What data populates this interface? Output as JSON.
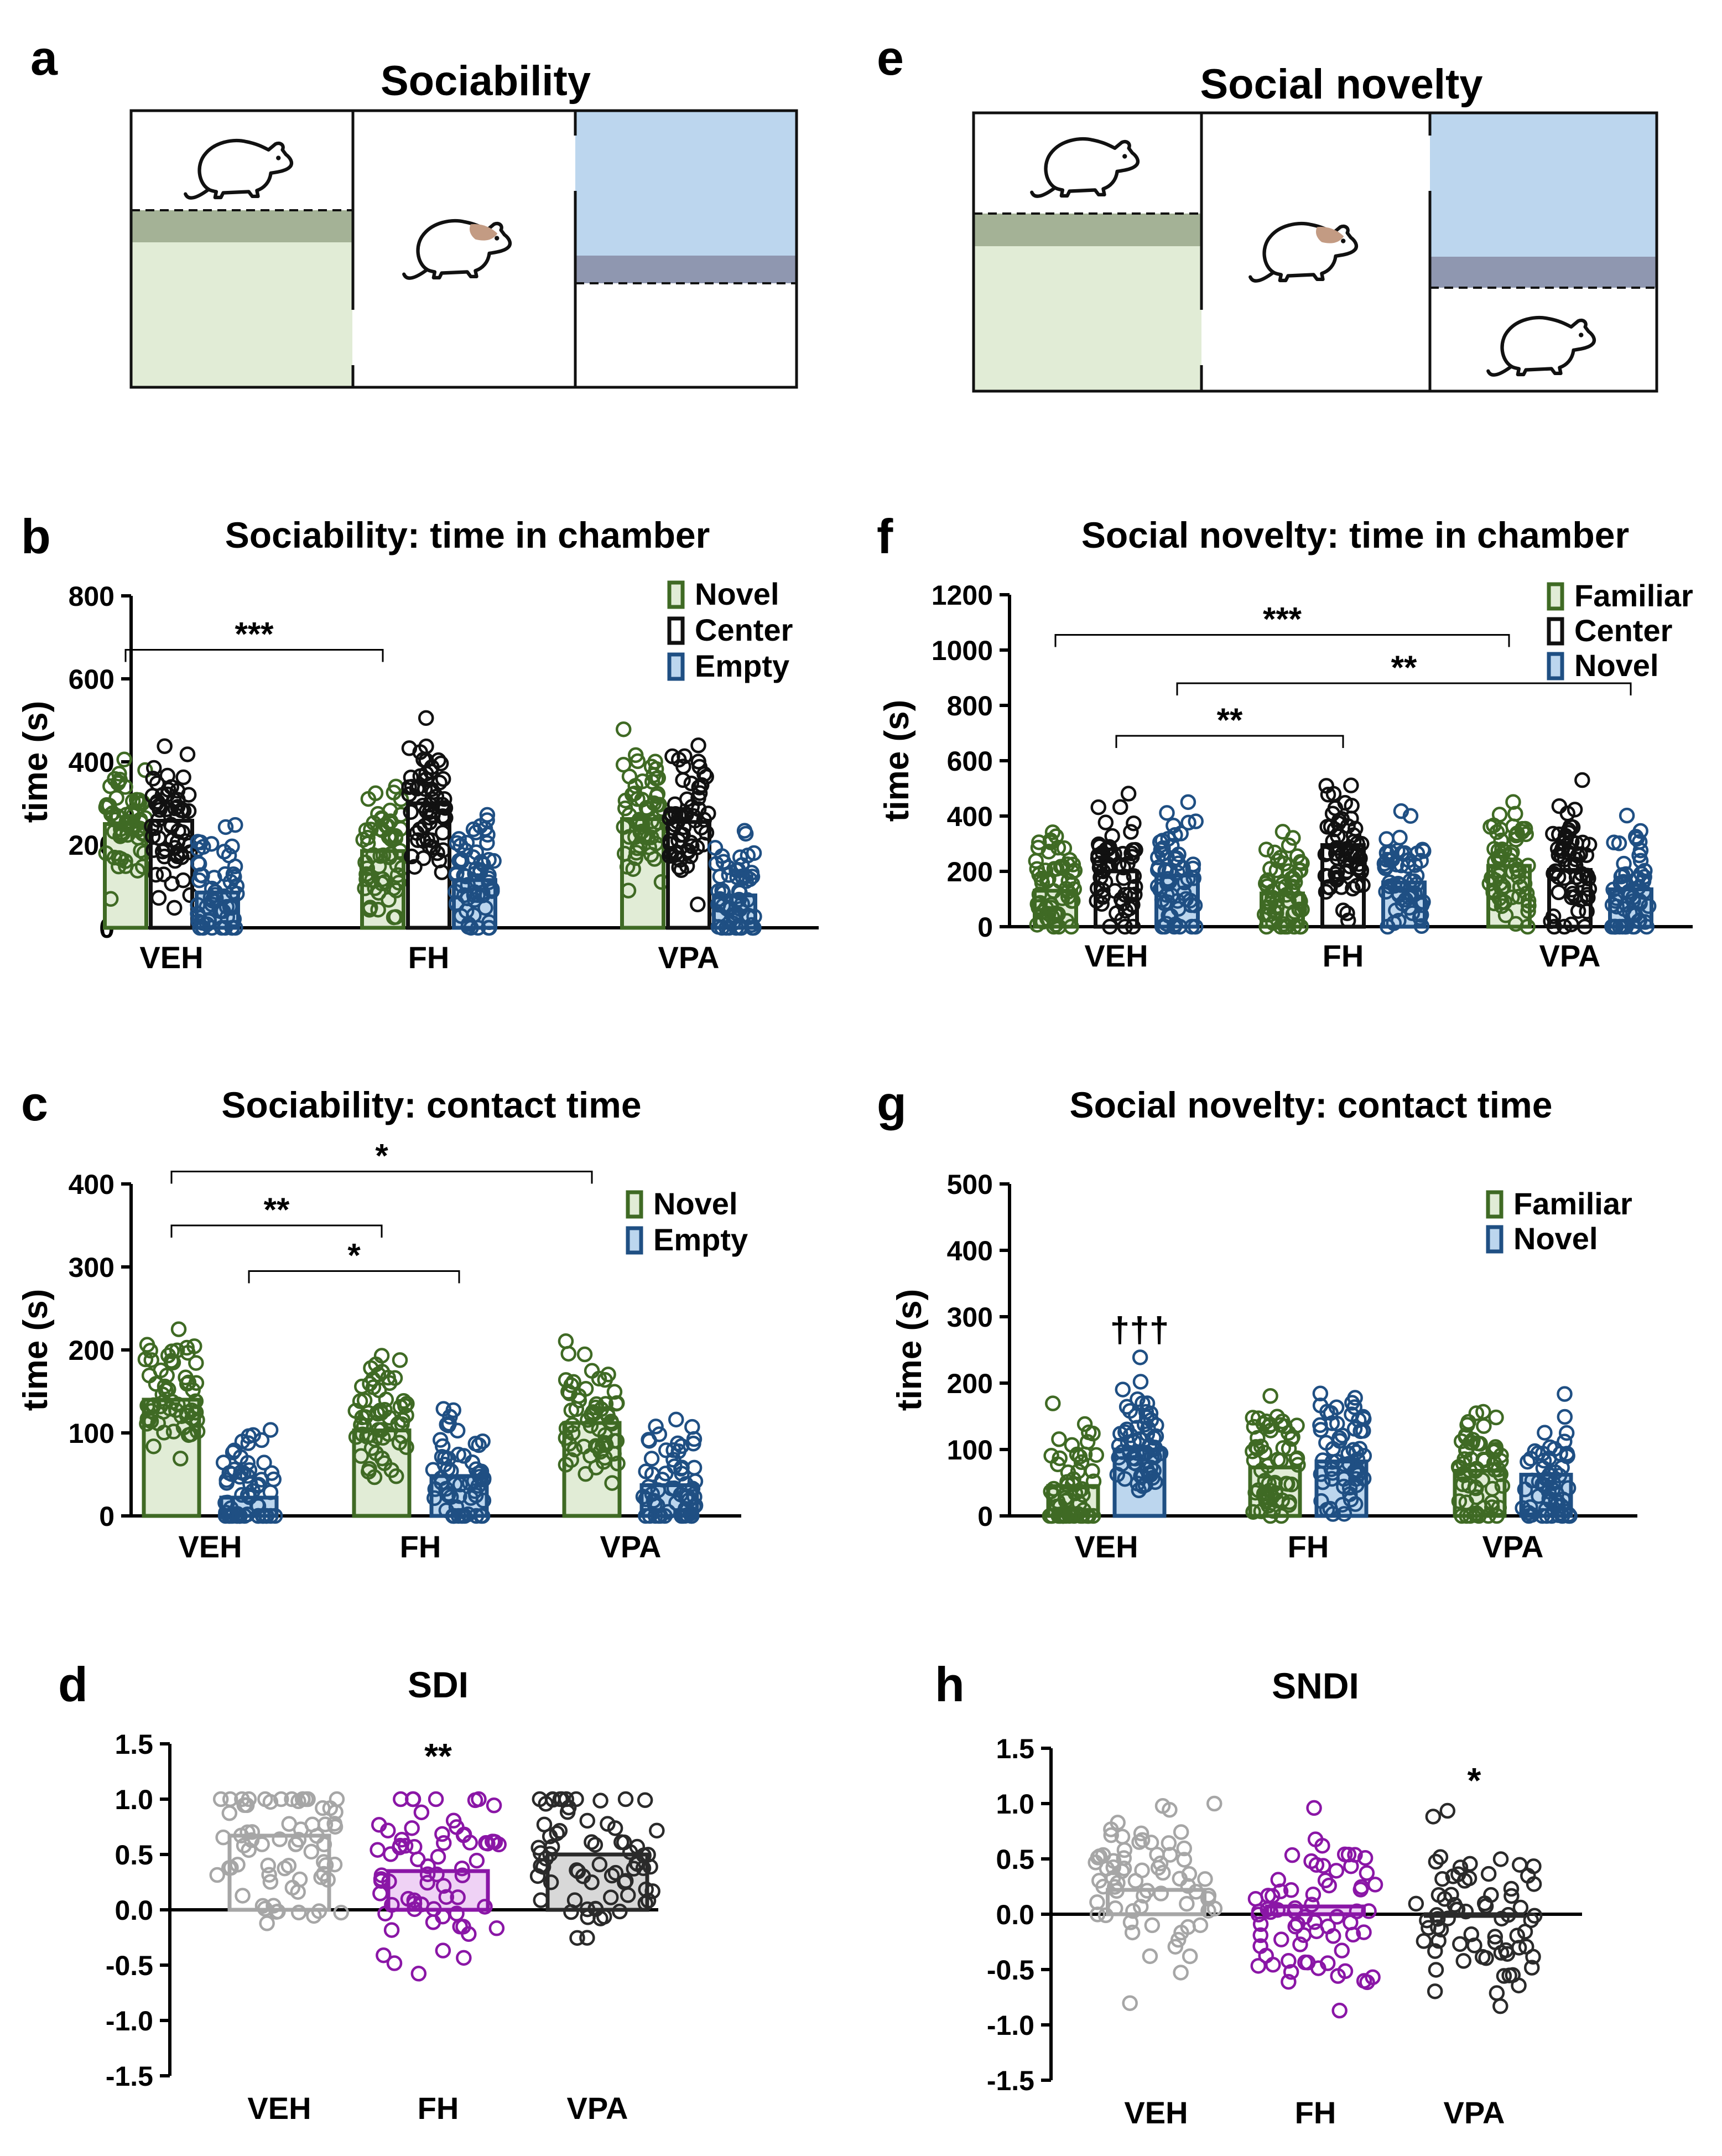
{
  "colors": {
    "green": "#3f6a24",
    "green_fill": "#e1ecd6",
    "green_band": "#a4b296",
    "blue": "#1f4f83",
    "blue_fill": "#bcd6ee",
    "blue_band": "#8f97b0",
    "black": "#111111",
    "gray": "#a6a6a6",
    "purple": "#8a16a6",
    "purple_fill": "#efd2f5",
    "dark": "#2a2a2a",
    "gray_fill": "#d8d8d8"
  },
  "panels": {
    "a": {
      "letter": "a",
      "title": "Sociability"
    },
    "e": {
      "letter": "e",
      "title": "Social novelty"
    },
    "b": {
      "letter": "b"
    },
    "c": {
      "letter": "c"
    },
    "d": {
      "letter": "d"
    },
    "f": {
      "letter": "f"
    },
    "g": {
      "letter": "g"
    },
    "h": {
      "letter": "h"
    }
  },
  "chart_data": [
    {
      "id": "b",
      "type": "bar",
      "title": "Sociability: time in chamber",
      "ylabel": "time (s)",
      "ylim": [
        0,
        800
      ],
      "yticks": [
        0,
        200,
        400,
        600,
        800
      ],
      "categories": [
        "VEH",
        "FH",
        "VPA"
      ],
      "series": [
        {
          "name": "Novel",
          "color": "green",
          "fill": "green_fill",
          "values": [
            250,
            185,
            262
          ]
        },
        {
          "name": "Center",
          "color": "black",
          "fill": "white",
          "values": [
            258,
            300,
            255
          ]
        },
        {
          "name": "Empty",
          "color": "blue",
          "fill": "blue_fill",
          "values": [
            85,
            115,
            78
          ]
        }
      ],
      "significance": [
        {
          "label": "***",
          "from": [
            0,
            0
          ],
          "to": [
            1,
            0
          ],
          "level": 670
        }
      ]
    },
    {
      "id": "c",
      "type": "bar",
      "title": "Sociability: contact time",
      "ylabel": "time (s)",
      "ylim": [
        0,
        400
      ],
      "yticks": [
        0,
        100,
        200,
        300,
        400
      ],
      "categories": [
        "VEH",
        "FH",
        "VPA"
      ],
      "series": [
        {
          "name": "Novel",
          "color": "green",
          "fill": "green_fill",
          "values": [
            140,
            103,
            112
          ]
        },
        {
          "name": "Empty",
          "color": "blue",
          "fill": "blue_fill",
          "values": [
            22,
            48,
            37
          ]
        }
      ],
      "significance": [
        {
          "label": "*",
          "from": [
            0,
            0
          ],
          "to": [
            2,
            0
          ],
          "level": 415
        },
        {
          "label": "**",
          "from": [
            0,
            0
          ],
          "to": [
            1,
            0
          ],
          "level": 350
        },
        {
          "label": "*",
          "from": [
            0,
            1
          ],
          "to": [
            1,
            1
          ],
          "level": 295
        }
      ]
    },
    {
      "id": "d",
      "type": "bar",
      "title": "SDI",
      "ylabel": "",
      "ylim": [
        -1.5,
        1.5
      ],
      "yticks": [
        -1.5,
        -1.0,
        -0.5,
        0.0,
        0.5,
        1.0,
        1.5
      ],
      "categories": [
        "VEH",
        "FH",
        "VPA"
      ],
      "series": [
        {
          "name": "SDI",
          "colors": [
            "gray",
            "purple",
            "dark"
          ],
          "fills": [
            "white",
            "purple_fill",
            "gray_fill"
          ],
          "values": [
            0.67,
            0.35,
            0.5
          ]
        }
      ],
      "markers": [
        {
          "label": "**",
          "category": 1,
          "level": 1.28
        }
      ]
    },
    {
      "id": "f",
      "type": "bar",
      "title": "Social novelty: time in chamber",
      "ylabel": "time (s)",
      "ylim": [
        0,
        1200
      ],
      "yticks": [
        0,
        200,
        400,
        600,
        800,
        1000,
        1200
      ],
      "categories": [
        "VEH",
        "FH",
        "VPA"
      ],
      "series": [
        {
          "name": "Familiar",
          "color": "green",
          "fill": "green_fill",
          "values": [
            130,
            120,
            220
          ]
        },
        {
          "name": "Center",
          "color": "black",
          "fill": "white",
          "values": [
            200,
            295,
            205
          ]
        },
        {
          "name": "Novel",
          "color": "blue",
          "fill": "blue_fill",
          "values": [
            185,
            160,
            135
          ]
        }
      ],
      "significance": [
        {
          "label": "***",
          "from": [
            0,
            0
          ],
          "to": [
            2,
            0
          ],
          "level": 1055
        },
        {
          "label": "**",
          "from": [
            0,
            2
          ],
          "to": [
            2,
            2
          ],
          "level": 880
        },
        {
          "label": "**",
          "from": [
            0,
            1
          ],
          "to": [
            1,
            1
          ],
          "level": 690
        }
      ]
    },
    {
      "id": "g",
      "type": "bar",
      "title": "Social novelty: contact time",
      "ylabel": "time (s)",
      "ylim": [
        0,
        500
      ],
      "yticks": [
        0,
        100,
        200,
        300,
        400,
        500
      ],
      "categories": [
        "VEH",
        "FH",
        "VPA"
      ],
      "series": [
        {
          "name": "Familiar",
          "color": "green",
          "fill": "green_fill",
          "values": [
            45,
            73,
            68
          ]
        },
        {
          "name": "Novel",
          "color": "blue",
          "fill": "blue_fill",
          "values": [
            100,
            82,
            62
          ]
        }
      ],
      "markers": [
        {
          "label": "†††",
          "category": 0,
          "series": 1,
          "level": 262
        }
      ]
    },
    {
      "id": "h",
      "type": "bar",
      "title": "SNDI",
      "ylabel": "",
      "ylim": [
        -1.5,
        1.5
      ],
      "yticks": [
        -1.5,
        -1.0,
        -0.5,
        0.0,
        0.5,
        1.0,
        1.5
      ],
      "categories": [
        "VEH",
        "FH",
        "VPA"
      ],
      "series": [
        {
          "name": "SNDI",
          "colors": [
            "gray",
            "purple",
            "dark"
          ],
          "fills": [
            "white",
            "purple_fill",
            "gray_fill"
          ],
          "values": [
            0.22,
            0.07,
            0.0
          ]
        }
      ],
      "markers": [
        {
          "label": "*",
          "category": 2,
          "level": 1.1
        }
      ]
    }
  ]
}
